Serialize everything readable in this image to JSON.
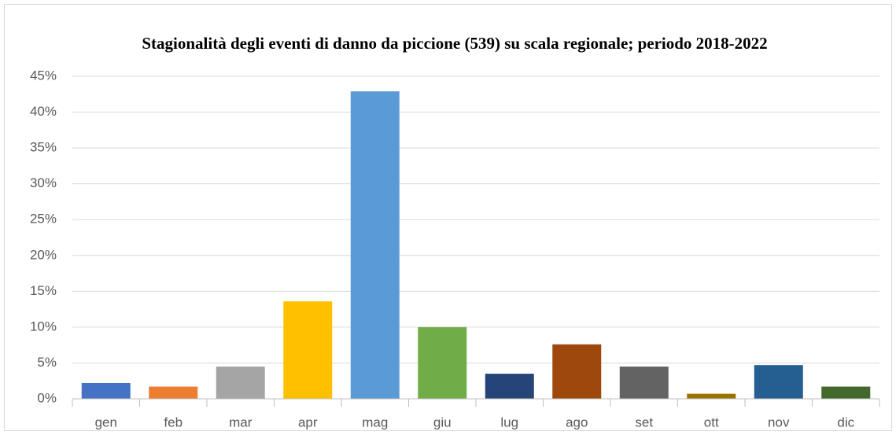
{
  "chart_data": {
    "type": "bar",
    "title": "Stagionalità degli eventi di danno da piccione (539) su scala regionale; periodo 2018-2022",
    "categories": [
      "gen",
      "feb",
      "mar",
      "apr",
      "mag",
      "giu",
      "lug",
      "ago",
      "set",
      "ott",
      "nov",
      "dic"
    ],
    "values": [
      2.2,
      1.7,
      4.5,
      13.6,
      42.9,
      10.0,
      3.5,
      7.6,
      4.5,
      0.7,
      4.7,
      1.7
    ],
    "colors": [
      "#4472c4",
      "#ed7d31",
      "#a5a5a5",
      "#ffc000",
      "#5b9bd5",
      "#70ad47",
      "#264478",
      "#9e480e",
      "#636363",
      "#997300",
      "#255e91",
      "#43682b"
    ],
    "ylim": [
      0,
      45
    ],
    "yticks": [
      {
        "value": 0,
        "label": "0%"
      },
      {
        "value": 5,
        "label": "5%"
      },
      {
        "value": 10,
        "label": "10%"
      },
      {
        "value": 15,
        "label": "15%"
      },
      {
        "value": 20,
        "label": "20%"
      },
      {
        "value": 25,
        "label": "25%"
      },
      {
        "value": 30,
        "label": "30%"
      },
      {
        "value": 35,
        "label": "35%"
      },
      {
        "value": 40,
        "label": "40%"
      },
      {
        "value": 45,
        "label": "45%"
      }
    ],
    "grid": true
  }
}
